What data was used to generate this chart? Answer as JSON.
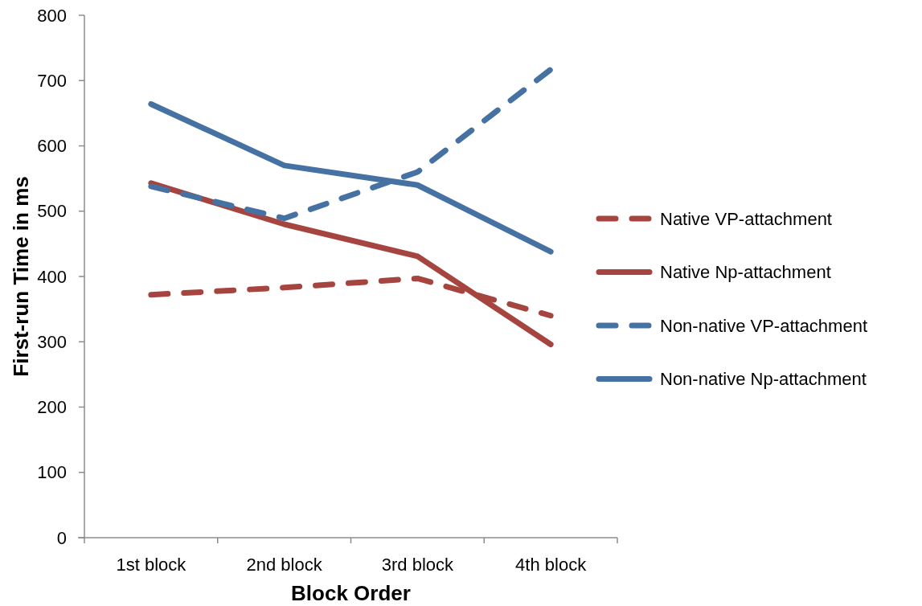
{
  "chart_data": {
    "type": "line",
    "xlabel": "Block Order",
    "ylabel": "First-run Time in ms",
    "categories": [
      "1st block",
      "2nd block",
      "3rd block",
      "4th block"
    ],
    "series": [
      {
        "name": "Native VP-attachment",
        "color": "#a6453f",
        "line_style": "dashed",
        "values": [
          372,
          383,
          397,
          340
        ]
      },
      {
        "name": "Native Np-attachment",
        "color": "#a6453f",
        "line_style": "solid",
        "values": [
          543,
          480,
          431,
          296
        ]
      },
      {
        "name": "Non-native VP-attachment",
        "color": "#4672a3",
        "line_style": "dashed",
        "values": [
          538,
          489,
          560,
          717
        ]
      },
      {
        "name": "Non-native Np-attachment",
        "color": "#4672a3",
        "line_style": "solid",
        "values": [
          664,
          570,
          540,
          438
        ]
      }
    ],
    "ylim": [
      0,
      800
    ],
    "yticks": [
      0,
      100,
      200,
      300,
      400,
      500,
      600,
      700,
      800
    ],
    "grid": false,
    "legend": "right",
    "marker": "none"
  }
}
